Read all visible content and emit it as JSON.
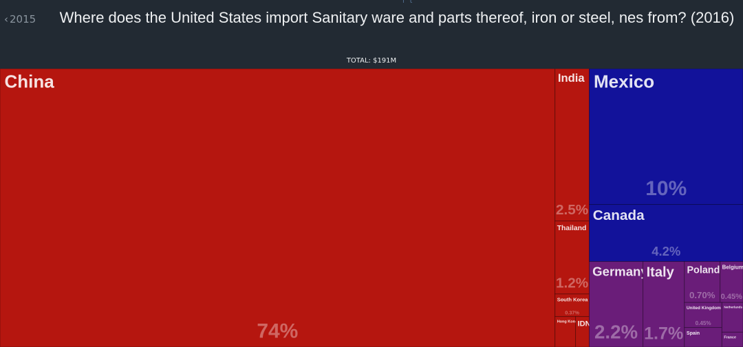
{
  "chart_data": {
    "type": "treemap",
    "title": "Where does the United States import Sanitary ware and parts thereof, iron or steel, nes from? (2016)",
    "subtitle": "TOTAL: $191M",
    "prev_label": "2015",
    "categories": [
      "China",
      "India",
      "Thailand",
      "South Korea",
      "Hong Kong",
      "IDN",
      "Mexico",
      "Canada",
      "Germany",
      "Italy",
      "Poland",
      "Belgium",
      "United Kingdom",
      "Spain",
      "Netherlands",
      "France"
    ],
    "values": [
      74,
      2.5,
      1.2,
      0.37,
      0.3,
      0.2,
      10,
      4.2,
      2.2,
      1.7,
      0.7,
      0.45,
      0.45,
      0.35,
      0.3,
      0.15
    ],
    "value_labels": [
      "74%",
      "2.5%",
      "1.2%",
      "0.37%",
      null,
      null,
      "10%",
      "4.2%",
      "2.2%",
      "1.7%",
      "0.70%",
      "0.45%",
      "0.45%",
      null,
      null,
      null
    ],
    "colors": [
      "#b5160f",
      "#b5160f",
      "#b5160f",
      "#b5160f",
      "#b5160f",
      "#b5160f",
      "#12129a",
      "#12129a",
      "#6a1d79",
      "#6a1d79",
      "#6a1d79",
      "#6a1d79",
      "#6a1d79",
      "#6a1d79",
      "#6a1d79",
      "#6a1d79"
    ]
  }
}
